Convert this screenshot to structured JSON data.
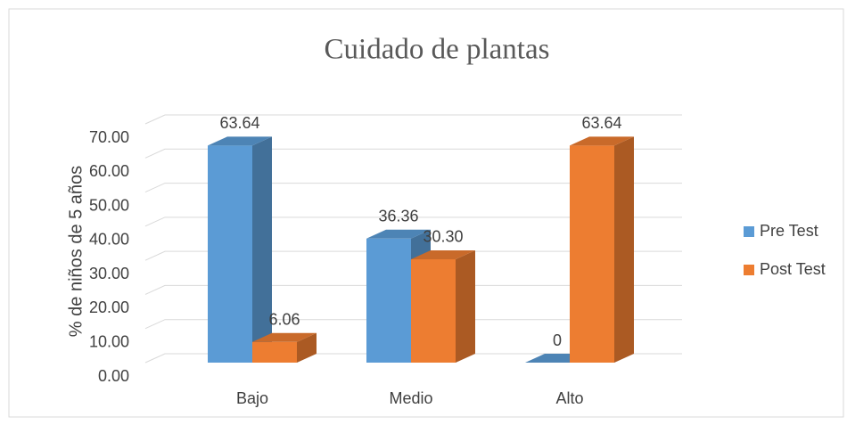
{
  "chart_data": {
    "type": "bar3d",
    "title": "Cuidado de plantas",
    "y_label": "% de niños de 5 años",
    "categories": [
      "Bajo",
      "Medio",
      "Alto"
    ],
    "series": [
      {
        "name": "Pre Test",
        "color": "#5b9bd5",
        "values": [
          63.64,
          36.36,
          0
        ],
        "value_labels": [
          "63.64",
          "36.36",
          "0"
        ]
      },
      {
        "name": "Post Test",
        "color": "#ed7d31",
        "values": [
          6.06,
          30.3,
          63.64
        ],
        "value_labels": [
          "6.06",
          "30.30",
          "63.64"
        ]
      }
    ],
    "ylim": [
      0,
      70
    ],
    "yticks": [
      {
        "value": 0,
        "label": "0.00"
      },
      {
        "value": 10,
        "label": "10.00"
      },
      {
        "value": 20,
        "label": "20.00"
      },
      {
        "value": 30,
        "label": "30.00"
      },
      {
        "value": 40,
        "label": "40.00"
      },
      {
        "value": 50,
        "label": "50.00"
      },
      {
        "value": 60,
        "label": "60.00"
      },
      {
        "value": 70,
        "label": "70.00"
      }
    ],
    "grid": true,
    "legend": "right"
  }
}
